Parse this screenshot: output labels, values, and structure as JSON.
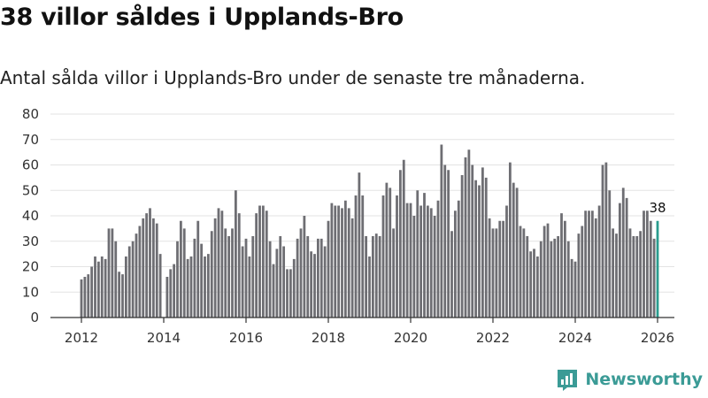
{
  "chart_data": {
    "type": "bar",
    "title": "38 villor såldes i Upplands-Bro",
    "subtitle": "Antal sålda villor i Upplands-Bro under de senaste tre månaderna.",
    "ylim": [
      0,
      80
    ],
    "yticks": [
      0,
      10,
      20,
      30,
      40,
      50,
      60,
      70,
      80
    ],
    "xticks": [
      "2012",
      "2014",
      "2016",
      "2018",
      "2020",
      "2022",
      "2024",
      "2026"
    ],
    "x_start": "2012-01",
    "x_end": "2026-01",
    "grid": true,
    "series": [
      {
        "name": "Sålda villor",
        "color": "#6e6e73",
        "highlight_color": "#2a9d8f",
        "values": [
          15,
          16,
          17,
          20,
          24,
          22,
          24,
          23,
          35,
          35,
          30,
          18,
          17,
          24,
          28,
          30,
          33,
          36,
          39,
          41,
          43,
          39,
          37,
          25,
          null,
          16,
          19,
          21,
          30,
          38,
          35,
          23,
          24,
          31,
          38,
          29,
          24,
          25,
          34,
          39,
          43,
          42,
          35,
          32,
          35,
          50,
          41,
          28,
          31,
          24,
          32,
          41,
          44,
          44,
          42,
          30,
          21,
          27,
          32,
          28,
          19,
          19,
          23,
          31,
          35,
          40,
          32,
          26,
          25,
          31,
          31,
          28,
          38,
          45,
          44,
          44,
          43,
          46,
          43,
          39,
          48,
          57,
          48,
          32,
          24,
          32,
          33,
          32,
          48,
          53,
          51,
          35,
          48,
          58,
          62,
          45,
          45,
          40,
          50,
          44,
          49,
          44,
          43,
          40,
          46,
          68,
          60,
          58,
          34,
          42,
          46,
          56,
          63,
          66,
          60,
          54,
          52,
          59,
          55,
          39,
          35,
          35,
          38,
          38,
          44,
          61,
          53,
          51,
          36,
          35,
          32,
          26,
          27,
          24,
          30,
          36,
          37,
          30,
          31,
          32,
          41,
          38,
          30,
          23,
          22,
          33,
          36,
          42,
          42,
          42,
          39,
          44,
          60,
          61,
          50,
          35,
          33,
          45,
          51,
          47,
          35,
          32,
          32,
          34,
          42,
          42,
          38,
          31,
          38
        ]
      }
    ],
    "highlight_label": "38"
  },
  "brand": {
    "name": "Newsworthy",
    "icon": "newsworthy-logo-icon",
    "color": "#3b9b96"
  }
}
